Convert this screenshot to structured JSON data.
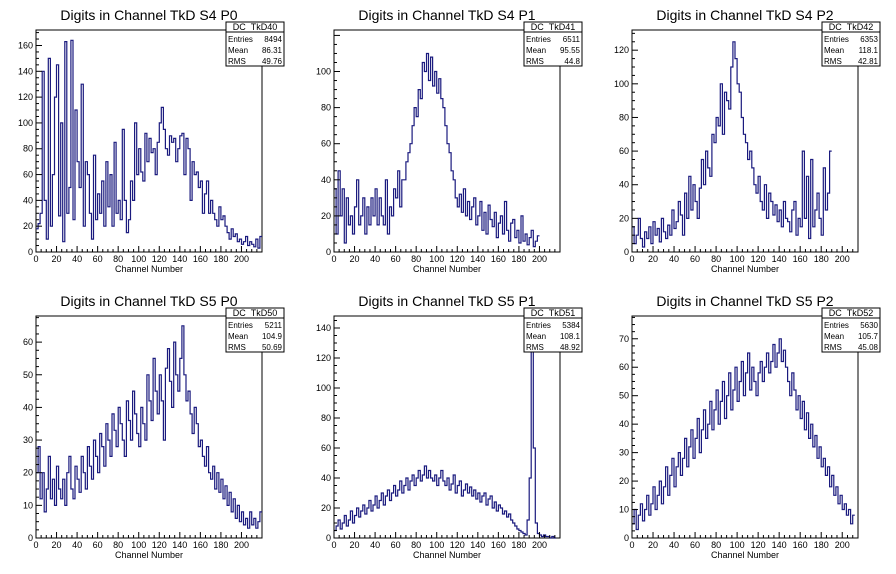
{
  "chart_data": [
    {
      "type": "histogram",
      "title": "Digits in Channel TkD S4 P0",
      "xlabel": "Channel Number",
      "xlim": [
        0,
        220
      ],
      "ylim": [
        0,
        172
      ],
      "xticks": [
        0,
        20,
        40,
        60,
        80,
        100,
        120,
        140,
        160,
        180,
        200
      ],
      "yticks": [
        0,
        20,
        40,
        60,
        80,
        100,
        120,
        140,
        160
      ],
      "stats": {
        "name": "DC_TkD40",
        "rows": [
          [
            "Entries",
            "8494"
          ],
          [
            "Mean",
            "86.31"
          ],
          [
            "RMS",
            "49.76"
          ]
        ]
      },
      "x0": 0,
      "binWidth": 2,
      "values": [
        18,
        22,
        30,
        140,
        40,
        10,
        150,
        20,
        60,
        120,
        145,
        28,
        100,
        8,
        163,
        30,
        50,
        164,
        25,
        110,
        70,
        50,
        130,
        20,
        70,
        60,
        30,
        10,
        75,
        25,
        45,
        30,
        55,
        20,
        70,
        35,
        60,
        20,
        85,
        30,
        40,
        25,
        95,
        40,
        15,
        25,
        55,
        40,
        100,
        60,
        80,
        62,
        55,
        92,
        70,
        88,
        77,
        80,
        60,
        85,
        100,
        112,
        95,
        80,
        75,
        90,
        85,
        88,
        70,
        80,
        90,
        92,
        60,
        88,
        80,
        40,
        70,
        60,
        62,
        50,
        55,
        30,
        45,
        55,
        30,
        40,
        30,
        25,
        20,
        35,
        25,
        28,
        20,
        15,
        10,
        18,
        12,
        14,
        8,
        10,
        6,
        8,
        12,
        5,
        8,
        6,
        4,
        10,
        3,
        12
      ]
    },
    {
      "type": "histogram",
      "title": "Digits in Channel TkD S4 P1",
      "xlabel": "Channel Number",
      "xlim": [
        0,
        220
      ],
      "ylim": [
        0,
        123
      ],
      "xticks": [
        0,
        20,
        40,
        60,
        80,
        100,
        120,
        140,
        160,
        180,
        200
      ],
      "yticks": [
        0,
        20,
        40,
        60,
        80,
        100
      ],
      "stats": {
        "name": "DC_TkD41",
        "rows": [
          [
            "Entries",
            "6511"
          ],
          [
            "Mean",
            "95.55"
          ],
          [
            "RMS",
            "44.8"
          ]
        ]
      },
      "x0": 0,
      "binWidth": 2,
      "values": [
        35,
        10,
        45,
        20,
        35,
        5,
        30,
        15,
        20,
        10,
        25,
        40,
        15,
        20,
        30,
        10,
        25,
        15,
        30,
        20,
        35,
        15,
        30,
        20,
        15,
        40,
        10,
        25,
        20,
        35,
        30,
        45,
        25,
        40,
        40,
        50,
        55,
        60,
        70,
        80,
        75,
        90,
        85,
        105,
        100,
        110,
        95,
        108,
        92,
        100,
        88,
        96,
        85,
        80,
        70,
        60,
        55,
        45,
        40,
        30,
        25,
        32,
        22,
        35,
        20,
        28,
        18,
        25,
        30,
        15,
        20,
        28,
        12,
        22,
        10,
        26,
        18,
        14,
        22,
        8,
        16,
        20,
        10,
        28,
        12,
        6,
        16,
        18,
        8,
        12,
        5,
        20,
        6,
        10,
        4,
        8,
        12,
        3,
        6,
        9
      ]
    },
    {
      "type": "histogram",
      "title": "Digits in Channel TkD S4 P2",
      "xlabel": "Channel Number",
      "xlim": [
        0,
        215
      ],
      "ylim": [
        0,
        132
      ],
      "xticks": [
        0,
        20,
        40,
        60,
        80,
        100,
        120,
        140,
        160,
        180,
        200
      ],
      "yticks": [
        0,
        20,
        40,
        60,
        80,
        100,
        120
      ],
      "stats": {
        "name": "DC_TkD42",
        "rows": [
          [
            "Entries",
            "6353"
          ],
          [
            "Mean",
            "118.1"
          ],
          [
            "RMS",
            "42.81"
          ]
        ]
      },
      "x0": 0,
      "binWidth": 2,
      "values": [
        15,
        5,
        10,
        20,
        8,
        3,
        12,
        8,
        15,
        5,
        18,
        10,
        14,
        6,
        20,
        12,
        8,
        16,
        10,
        25,
        14,
        18,
        30,
        22,
        10,
        35,
        20,
        45,
        25,
        40,
        30,
        20,
        38,
        55,
        40,
        60,
        50,
        45,
        70,
        65,
        80,
        75,
        100,
        70,
        95,
        90,
        85,
        110,
        125,
        115,
        100,
        95,
        80,
        70,
        65,
        55,
        60,
        50,
        40,
        35,
        45,
        30,
        25,
        40,
        20,
        35,
        30,
        22,
        28,
        18,
        25,
        15,
        30,
        20,
        18,
        12,
        25,
        30,
        10,
        20,
        15,
        60,
        20,
        45,
        8,
        55,
        15,
        25,
        35,
        20,
        10,
        50,
        25,
        35,
        60
      ]
    },
    {
      "type": "histogram",
      "title": "Digits in Channel TkD S5 P0",
      "xlabel": "Channel Number",
      "xlim": [
        0,
        220
      ],
      "ylim": [
        0,
        68
      ],
      "xticks": [
        0,
        20,
        40,
        60,
        80,
        100,
        120,
        140,
        160,
        180,
        200
      ],
      "yticks": [
        0,
        10,
        20,
        30,
        40,
        50,
        60
      ],
      "stats": {
        "name": "DC_TkD50",
        "rows": [
          [
            "Entries",
            "5211"
          ],
          [
            "Mean",
            "104.9"
          ],
          [
            "RMS",
            "50.69"
          ]
        ]
      },
      "x0": 0,
      "binWidth": 2,
      "values": [
        20,
        28,
        12,
        20,
        8,
        15,
        25,
        12,
        18,
        10,
        22,
        15,
        12,
        18,
        10,
        20,
        25,
        15,
        12,
        22,
        18,
        14,
        25,
        20,
        15,
        28,
        22,
        18,
        30,
        25,
        20,
        32,
        28,
        22,
        35,
        30,
        25,
        38,
        33,
        28,
        40,
        35,
        30,
        25,
        42,
        36,
        30,
        45,
        38,
        32,
        28,
        40,
        35,
        30,
        50,
        42,
        36,
        55,
        45,
        38,
        50,
        42,
        30,
        52,
        58,
        48,
        40,
        60,
        50,
        45,
        55,
        65,
        50,
        42,
        45,
        38,
        32,
        40,
        35,
        28,
        30,
        25,
        22,
        28,
        20,
        18,
        22,
        15,
        20,
        14,
        18,
        12,
        16,
        10,
        14,
        8,
        12,
        6,
        10,
        5,
        8,
        4,
        6,
        3,
        8,
        4,
        6,
        3,
        5,
        8
      ]
    },
    {
      "type": "histogram",
      "title": "Digits in Channel TkD S5 P1",
      "xlabel": "Channel Number",
      "xlim": [
        0,
        220
      ],
      "ylim": [
        0,
        148
      ],
      "xticks": [
        0,
        20,
        40,
        60,
        80,
        100,
        120,
        140,
        160,
        180,
        200
      ],
      "yticks": [
        0,
        20,
        40,
        60,
        80,
        100,
        120,
        140
      ],
      "stats": {
        "name": "DC_TkD51",
        "rows": [
          [
            "Entries",
            "5384"
          ],
          [
            "Mean",
            "108.1"
          ],
          [
            "RMS",
            "48.92"
          ]
        ]
      },
      "x0": 0,
      "binWidth": 2,
      "values": [
        5,
        8,
        12,
        6,
        10,
        15,
        8,
        12,
        18,
        10,
        15,
        20,
        14,
        18,
        22,
        16,
        20,
        25,
        18,
        22,
        28,
        20,
        25,
        30,
        22,
        28,
        32,
        25,
        30,
        35,
        28,
        32,
        38,
        30,
        35,
        40,
        32,
        38,
        42,
        35,
        40,
        45,
        38,
        42,
        48,
        40,
        45,
        40,
        38,
        42,
        35,
        40,
        45,
        38,
        35,
        40,
        32,
        36,
        42,
        30,
        35,
        38,
        28,
        32,
        36,
        30,
        34,
        28,
        32,
        26,
        30,
        24,
        28,
        30,
        22,
        26,
        28,
        20,
        24,
        18,
        22,
        20,
        16,
        18,
        14,
        16,
        12,
        10,
        8,
        6,
        5,
        4,
        3,
        2,
        12,
        40,
        140,
        60,
        10,
        3,
        2,
        1,
        2,
        1,
        1,
        0,
        1,
        0
      ]
    },
    {
      "type": "histogram",
      "title": "Digits in Channel TkD S5 P2",
      "xlabel": "Channel Number",
      "xlim": [
        0,
        215
      ],
      "ylim": [
        0,
        78
      ],
      "xticks": [
        0,
        20,
        40,
        60,
        80,
        100,
        120,
        140,
        160,
        180,
        200
      ],
      "yticks": [
        0,
        10,
        20,
        30,
        40,
        50,
        60,
        70
      ],
      "stats": {
        "name": "DC_TkD52",
        "rows": [
          [
            "Entries",
            "5630"
          ],
          [
            "Mean",
            "105.7"
          ],
          [
            "RMS",
            "45.08"
          ]
        ]
      },
      "x0": 0,
      "binWidth": 2,
      "values": [
        5,
        10,
        3,
        8,
        12,
        6,
        10,
        15,
        8,
        12,
        18,
        10,
        15,
        20,
        12,
        18,
        25,
        15,
        22,
        28,
        18,
        25,
        30,
        22,
        28,
        35,
        25,
        32,
        38,
        28,
        35,
        42,
        30,
        38,
        45,
        35,
        40,
        48,
        38,
        45,
        52,
        40,
        48,
        55,
        42,
        50,
        58,
        45,
        52,
        60,
        48,
        55,
        62,
        50,
        58,
        65,
        52,
        60,
        55,
        50,
        58,
        62,
        55,
        60,
        65,
        58,
        62,
        68,
        60,
        65,
        70,
        62,
        66,
        60,
        55,
        50,
        58,
        52,
        45,
        50,
        42,
        48,
        38,
        44,
        35,
        40,
        32,
        36,
        28,
        32,
        25,
        28,
        22,
        25,
        18,
        22,
        15,
        18,
        12,
        15,
        10,
        12,
        8,
        10,
        5,
        8
      ]
    }
  ]
}
